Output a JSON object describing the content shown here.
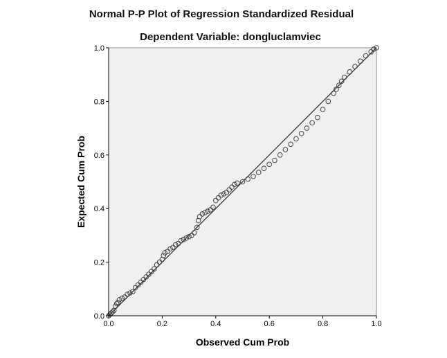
{
  "chart_data": {
    "type": "scatter",
    "title": "Normal P-P Plot of Regression Standardized Residual",
    "subtitle": "Dependent Variable: dongluclamviec",
    "xlabel": "Observed Cum Prob",
    "ylabel": "Expected Cum Prob",
    "xlim": [
      0,
      1
    ],
    "ylim": [
      0,
      1
    ],
    "xticks": [
      "0.0",
      "0.2",
      "0.4",
      "0.6",
      "0.8",
      "1.0"
    ],
    "yticks": [
      "0.0",
      "0.2",
      "0.4",
      "0.6",
      "0.8",
      "1.0"
    ],
    "grid": false,
    "reference_line": [
      [
        0,
        0
      ],
      [
        1,
        1
      ]
    ],
    "colors": {
      "plot_bg": "#f0f0f0",
      "marker": "#444444",
      "line": "#333333"
    },
    "points": [
      [
        0.0,
        0.0
      ],
      [
        0.005,
        0.005
      ],
      [
        0.01,
        0.01
      ],
      [
        0.015,
        0.015
      ],
      [
        0.02,
        0.02
      ],
      [
        0.025,
        0.035
      ],
      [
        0.03,
        0.045
      ],
      [
        0.035,
        0.05
      ],
      [
        0.04,
        0.06
      ],
      [
        0.05,
        0.065
      ],
      [
        0.06,
        0.07
      ],
      [
        0.07,
        0.08
      ],
      [
        0.08,
        0.085
      ],
      [
        0.09,
        0.09
      ],
      [
        0.1,
        0.105
      ],
      [
        0.11,
        0.115
      ],
      [
        0.12,
        0.125
      ],
      [
        0.13,
        0.135
      ],
      [
        0.14,
        0.145
      ],
      [
        0.15,
        0.155
      ],
      [
        0.16,
        0.165
      ],
      [
        0.17,
        0.175
      ],
      [
        0.18,
        0.19
      ],
      [
        0.19,
        0.2
      ],
      [
        0.2,
        0.21
      ],
      [
        0.205,
        0.225
      ],
      [
        0.21,
        0.235
      ],
      [
        0.22,
        0.24
      ],
      [
        0.23,
        0.25
      ],
      [
        0.24,
        0.255
      ],
      [
        0.25,
        0.265
      ],
      [
        0.26,
        0.27
      ],
      [
        0.27,
        0.28
      ],
      [
        0.28,
        0.285
      ],
      [
        0.29,
        0.29
      ],
      [
        0.3,
        0.295
      ],
      [
        0.31,
        0.3
      ],
      [
        0.32,
        0.31
      ],
      [
        0.33,
        0.33
      ],
      [
        0.335,
        0.355
      ],
      [
        0.34,
        0.37
      ],
      [
        0.35,
        0.38
      ],
      [
        0.36,
        0.385
      ],
      [
        0.37,
        0.39
      ],
      [
        0.38,
        0.395
      ],
      [
        0.39,
        0.405
      ],
      [
        0.4,
        0.43
      ],
      [
        0.41,
        0.44
      ],
      [
        0.42,
        0.45
      ],
      [
        0.43,
        0.455
      ],
      [
        0.44,
        0.46
      ],
      [
        0.45,
        0.47
      ],
      [
        0.46,
        0.48
      ],
      [
        0.47,
        0.49
      ],
      [
        0.48,
        0.495
      ],
      [
        0.5,
        0.5
      ],
      [
        0.52,
        0.51
      ],
      [
        0.54,
        0.52
      ],
      [
        0.56,
        0.535
      ],
      [
        0.58,
        0.55
      ],
      [
        0.6,
        0.565
      ],
      [
        0.62,
        0.58
      ],
      [
        0.64,
        0.6
      ],
      [
        0.66,
        0.62
      ],
      [
        0.68,
        0.64
      ],
      [
        0.7,
        0.66
      ],
      [
        0.72,
        0.68
      ],
      [
        0.74,
        0.7
      ],
      [
        0.76,
        0.72
      ],
      [
        0.78,
        0.74
      ],
      [
        0.8,
        0.77
      ],
      [
        0.82,
        0.8
      ],
      [
        0.84,
        0.83
      ],
      [
        0.85,
        0.845
      ],
      [
        0.86,
        0.86
      ],
      [
        0.87,
        0.875
      ],
      [
        0.88,
        0.89
      ],
      [
        0.9,
        0.91
      ],
      [
        0.92,
        0.93
      ],
      [
        0.94,
        0.95
      ],
      [
        0.96,
        0.97
      ],
      [
        0.98,
        0.985
      ],
      [
        0.99,
        0.995
      ],
      [
        1.0,
        1.0
      ]
    ]
  }
}
